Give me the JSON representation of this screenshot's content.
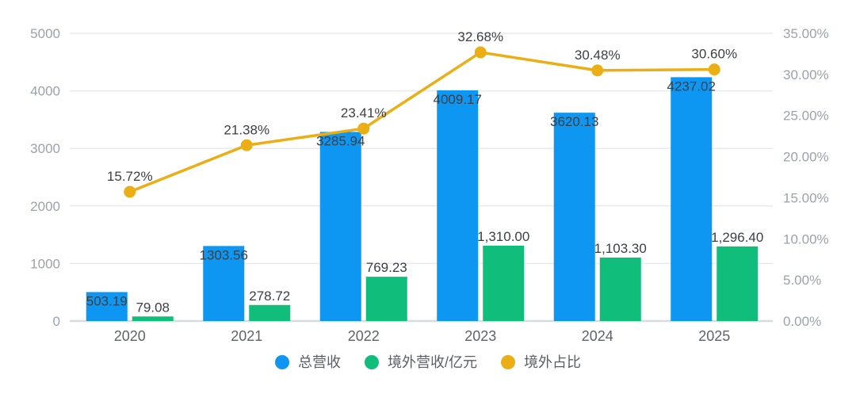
{
  "chart_data": {
    "type": "combo",
    "categories": [
      "2020",
      "2021",
      "2022",
      "2023",
      "2024",
      "2025"
    ],
    "series": [
      {
        "name": "总营收",
        "type": "bar",
        "axis": "left",
        "color": "#0e97f2",
        "values": [
          503.19,
          1303.56,
          3285.94,
          4009.17,
          3620.13,
          4237.02
        ],
        "labels": [
          "503.19",
          "1303.56",
          "3285.94",
          "4009.17",
          "3620.13",
          "4237.02"
        ]
      },
      {
        "name": "境外营收/亿元",
        "type": "bar",
        "axis": "left",
        "color": "#11bd7b",
        "values": [
          79.08,
          278.72,
          769.23,
          1310.0,
          1103.3,
          1296.4
        ],
        "labels": [
          "79.08",
          "278.72",
          "769.23",
          "1,310.00",
          "1,103.30",
          "1,296.40"
        ]
      },
      {
        "name": "境外占比",
        "type": "line",
        "axis": "right",
        "color": "#ebae14",
        "values": [
          15.72,
          21.38,
          23.41,
          32.68,
          30.48,
          30.6
        ],
        "labels": [
          "15.72%",
          "21.38%",
          "23.41%",
          "32.68%",
          "30.48%",
          "30.60%"
        ]
      }
    ],
    "left_axis": {
      "min": 0,
      "max": 5000,
      "step": 1000,
      "ticks": [
        "0",
        "1000",
        "2000",
        "3000",
        "4000",
        "5000"
      ]
    },
    "right_axis": {
      "min": 0,
      "max": 35,
      "step": 5,
      "ticks": [
        "0.00%",
        "5.00%",
        "10.00%",
        "15.00%",
        "20.00%",
        "25.00%",
        "30.00%",
        "35.00%"
      ]
    },
    "grid": true,
    "legend_position": "bottom",
    "legend": [
      {
        "label": "总营收",
        "color": "#0e97f2"
      },
      {
        "label": "境外营收/亿元",
        "color": "#11bd7b"
      },
      {
        "label": "境外占比",
        "color": "#ebae14"
      }
    ],
    "colors": {
      "gridline": "#e8eaed",
      "baseline": "#d8dbdf",
      "axis_tick_text": "#9aa3ab",
      "category_text": "#5f6368",
      "value_label_text": "#3b3f44",
      "background": "#ffffff"
    }
  }
}
